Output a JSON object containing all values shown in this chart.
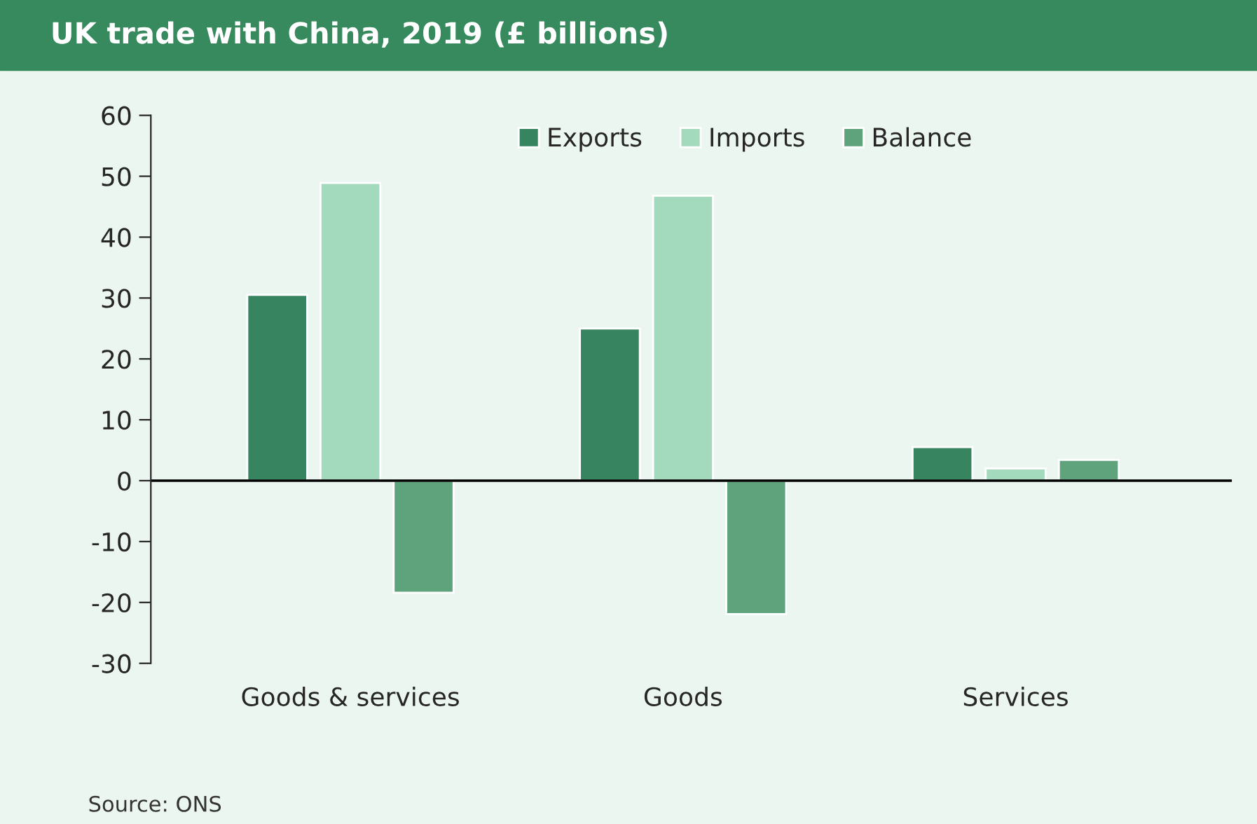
{
  "chart_data": {
    "type": "bar",
    "title": "UK trade with China, 2019 (£ billions)",
    "categories": [
      "Goods & services",
      "Goods",
      "Services"
    ],
    "series": [
      {
        "name": "Exports",
        "color": "#378560",
        "values": [
          30.5,
          25.0,
          5.5
        ]
      },
      {
        "name": "Imports",
        "color": "#a3d9bd",
        "values": [
          48.9,
          46.8,
          2.0
        ]
      },
      {
        "name": "Balance",
        "color": "#5ea37b",
        "values": [
          -18.4,
          -21.9,
          3.4
        ]
      }
    ],
    "ylim": [
      -30,
      60
    ],
    "yticks": [
      -30,
      -20,
      -10,
      0,
      10,
      20,
      30,
      40,
      50,
      60
    ],
    "ref_lines": [
      {
        "axis": "y",
        "value": 0,
        "color": "#000000"
      }
    ],
    "annotations": [
      "Source: ONS"
    ],
    "legend": "top",
    "grid": false
  }
}
